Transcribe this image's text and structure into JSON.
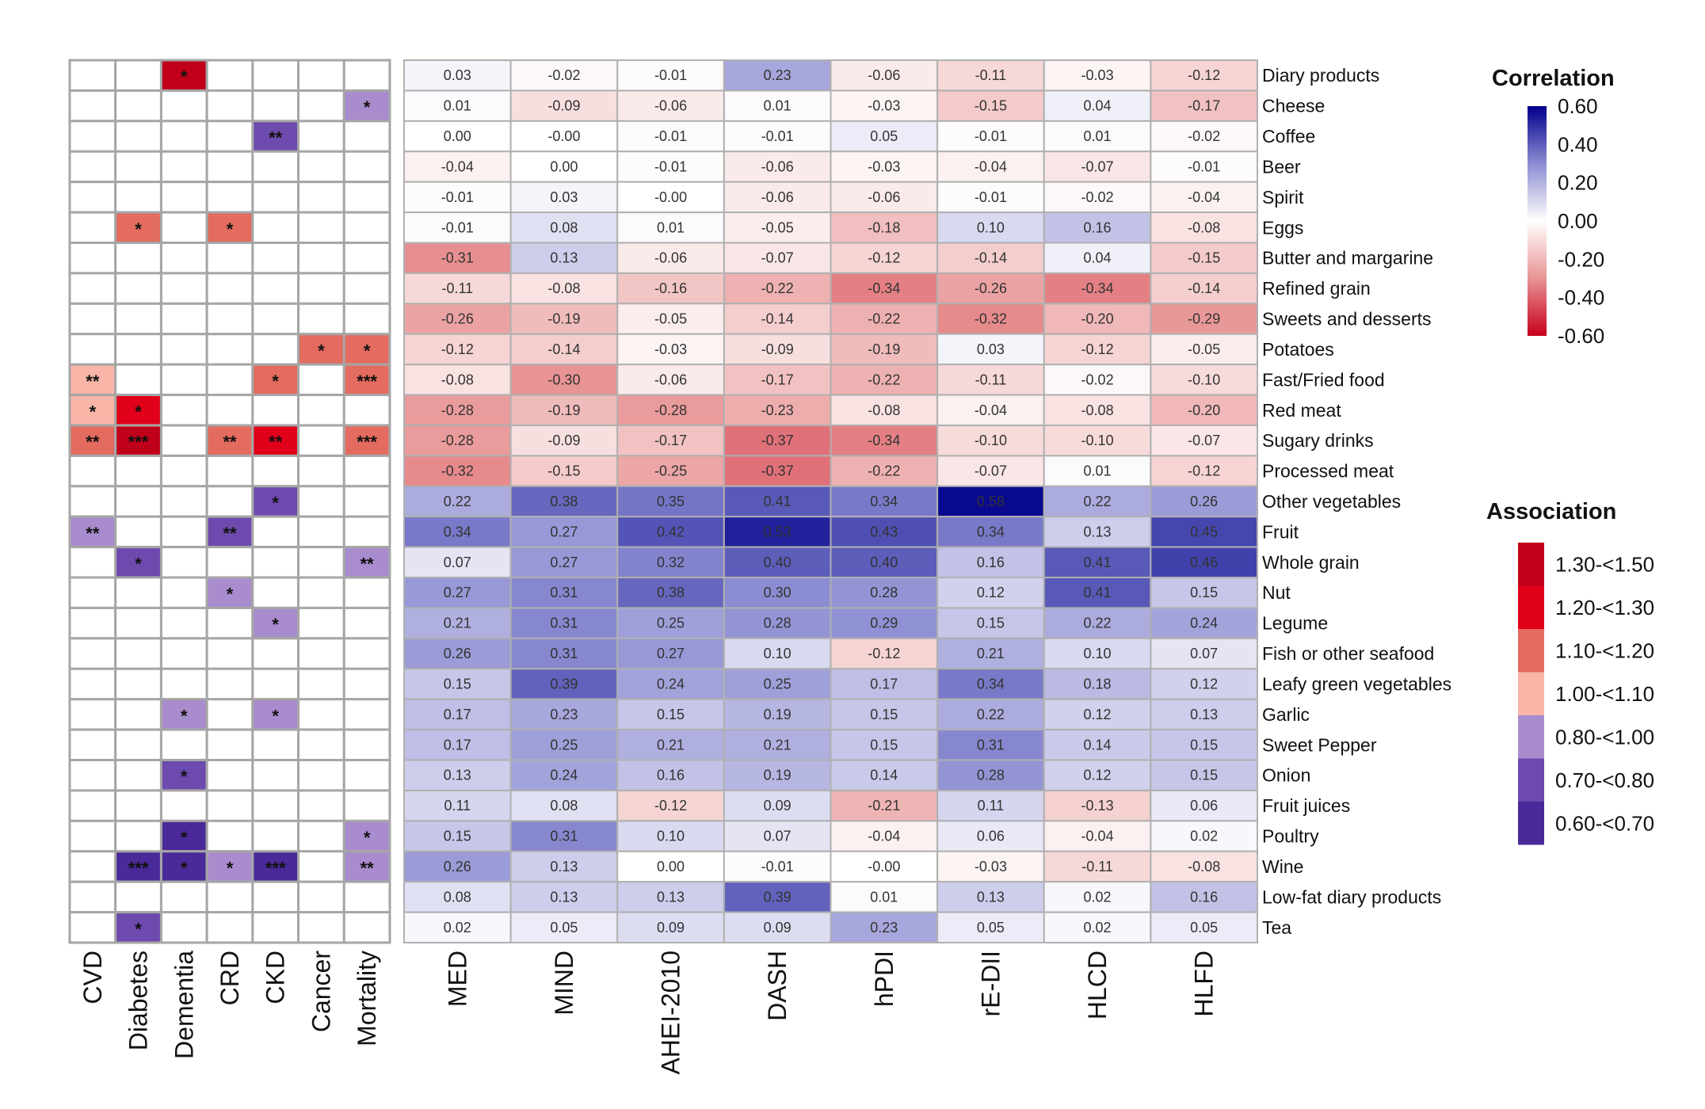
{
  "chart_data": {
    "type": "heatmap",
    "rows": [
      "Diary products",
      "Cheese",
      "Coffee",
      "Beer",
      "Spirit",
      "Eggs",
      "Butter and margarine",
      "Refined grain",
      "Sweets and desserts",
      "Potatoes",
      "Fast/Fried food",
      "Red meat",
      "Sugary drinks",
      "Processed meat",
      "Other vegetables",
      "Fruit",
      "Whole grain",
      "Nut",
      "Legume",
      "Fish or other seafood",
      "Leafy green vegetables",
      "Garlic",
      "Sweet Pepper",
      "Onion",
      "Fruit juices",
      "Poultry",
      "Wine",
      "Low-fat diary products",
      "Tea"
    ],
    "correlation": {
      "columns": [
        "MED",
        "MIND",
        "AHEI-2010",
        "DASH",
        "hPDI",
        "rE-DII",
        "HLCD",
        "HLFD"
      ],
      "values": [
        [
          "0.03",
          "-0.02",
          "-0.01",
          "0.23",
          "-0.06",
          "-0.11",
          "-0.03",
          "-0.12"
        ],
        [
          "0.01",
          "-0.09",
          "-0.06",
          "0.01",
          "-0.03",
          "-0.15",
          "0.04",
          "-0.17"
        ],
        [
          "0.00",
          "-0.00",
          "-0.01",
          "-0.01",
          "0.05",
          "-0.01",
          "0.01",
          "-0.02"
        ],
        [
          "-0.04",
          "0.00",
          "-0.01",
          "-0.06",
          "-0.03",
          "-0.04",
          "-0.07",
          "-0.01"
        ],
        [
          "-0.01",
          "0.03",
          "-0.00",
          "-0.06",
          "-0.06",
          "-0.01",
          "-0.02",
          "-0.04"
        ],
        [
          "-0.01",
          "0.08",
          "0.01",
          "-0.05",
          "-0.18",
          "0.10",
          "0.16",
          "-0.08"
        ],
        [
          "-0.31",
          "0.13",
          "-0.06",
          "-0.07",
          "-0.12",
          "-0.14",
          "0.04",
          "-0.15"
        ],
        [
          "-0.11",
          "-0.08",
          "-0.16",
          "-0.22",
          "-0.34",
          "-0.26",
          "-0.34",
          "-0.14"
        ],
        [
          "-0.26",
          "-0.19",
          "-0.05",
          "-0.14",
          "-0.22",
          "-0.32",
          "-0.20",
          "-0.29"
        ],
        [
          "-0.12",
          "-0.14",
          "-0.03",
          "-0.09",
          "-0.19",
          "0.03",
          "-0.12",
          "-0.05"
        ],
        [
          "-0.08",
          "-0.30",
          "-0.06",
          "-0.17",
          "-0.22",
          "-0.11",
          "-0.02",
          "-0.10"
        ],
        [
          "-0.28",
          "-0.19",
          "-0.28",
          "-0.23",
          "-0.08",
          "-0.04",
          "-0.08",
          "-0.20"
        ],
        [
          "-0.28",
          "-0.09",
          "-0.17",
          "-0.37",
          "-0.34",
          "-0.10",
          "-0.10",
          "-0.07"
        ],
        [
          "-0.32",
          "-0.15",
          "-0.25",
          "-0.37",
          "-0.22",
          "-0.07",
          "0.01",
          "-0.12"
        ],
        [
          "0.22",
          "0.38",
          "0.35",
          "0.41",
          "0.34",
          "0.58",
          "0.22",
          "0.26"
        ],
        [
          "0.34",
          "0.27",
          "0.42",
          "0.53",
          "0.43",
          "0.34",
          "0.13",
          "0.45"
        ],
        [
          "0.07",
          "0.27",
          "0.32",
          "0.40",
          "0.40",
          "0.16",
          "0.41",
          "0.46"
        ],
        [
          "0.27",
          "0.31",
          "0.38",
          "0.30",
          "0.28",
          "0.12",
          "0.41",
          "0.15"
        ],
        [
          "0.21",
          "0.31",
          "0.25",
          "0.28",
          "0.29",
          "0.15",
          "0.22",
          "0.24"
        ],
        [
          "0.26",
          "0.31",
          "0.27",
          "0.10",
          "-0.12",
          "0.21",
          "0.10",
          "0.07"
        ],
        [
          "0.15",
          "0.39",
          "0.24",
          "0.25",
          "0.17",
          "0.34",
          "0.18",
          "0.12"
        ],
        [
          "0.17",
          "0.23",
          "0.15",
          "0.19",
          "0.15",
          "0.22",
          "0.12",
          "0.13"
        ],
        [
          "0.17",
          "0.25",
          "0.21",
          "0.21",
          "0.15",
          "0.31",
          "0.14",
          "0.15"
        ],
        [
          "0.13",
          "0.24",
          "0.16",
          "0.19",
          "0.14",
          "0.28",
          "0.12",
          "0.15"
        ],
        [
          "0.11",
          "0.08",
          "-0.12",
          "0.09",
          "-0.21",
          "0.11",
          "-0.13",
          "0.06"
        ],
        [
          "0.15",
          "0.31",
          "0.10",
          "0.07",
          "-0.04",
          "0.06",
          "-0.04",
          "0.02"
        ],
        [
          "0.26",
          "0.13",
          "0.00",
          "-0.01",
          "-0.00",
          "-0.03",
          "-0.11",
          "-0.08"
        ],
        [
          "0.08",
          "0.13",
          "0.13",
          "0.39",
          "0.01",
          "0.13",
          "0.02",
          "0.16"
        ],
        [
          "0.02",
          "0.05",
          "0.09",
          "0.09",
          "0.23",
          "0.05",
          "0.02",
          "0.05"
        ]
      ],
      "legend_title": "Correlation",
      "legend_ticks": [
        "0.60",
        "0.40",
        "0.20",
        "0.00",
        "-0.20",
        "-0.40",
        "-0.60"
      ],
      "range": [
        -0.6,
        0.6
      ],
      "colors": {
        "low": "#c8001e",
        "mid_low": "#e89494",
        "zero": "#ffffff",
        "mid_high": "#8c8cd2",
        "high": "#00008b"
      }
    },
    "association": {
      "columns": [
        "CVD",
        "Diabetes",
        "Dementia",
        "CRD",
        "CKD",
        "Cancer",
        "Mortality"
      ],
      "legend_title": "Association",
      "categories": [
        "1.30-<1.50",
        "1.20-<1.30",
        "1.10-<1.20",
        "1.00-<1.10",
        "0.80-<1.00",
        "0.70-<0.80",
        "0.60-<0.70"
      ],
      "category_colors": [
        "#c0001a",
        "#e00019",
        "#e46b5f",
        "#f8b5a8",
        "#a98ccd",
        "#6d4aad",
        "#4a2999"
      ],
      "cells": [
        {
          "row": 0,
          "col": 2,
          "cat": 0,
          "sig": "*"
        },
        {
          "row": 1,
          "col": 6,
          "cat": 4,
          "sig": "*"
        },
        {
          "row": 2,
          "col": 4,
          "cat": 5,
          "sig": "**"
        },
        {
          "row": 5,
          "col": 1,
          "cat": 2,
          "sig": "*"
        },
        {
          "row": 5,
          "col": 3,
          "cat": 2,
          "sig": "*"
        },
        {
          "row": 9,
          "col": 5,
          "cat": 2,
          "sig": "*"
        },
        {
          "row": 9,
          "col": 6,
          "cat": 2,
          "sig": "*"
        },
        {
          "row": 10,
          "col": 0,
          "cat": 3,
          "sig": "**"
        },
        {
          "row": 10,
          "col": 4,
          "cat": 2,
          "sig": "*"
        },
        {
          "row": 10,
          "col": 6,
          "cat": 2,
          "sig": "***"
        },
        {
          "row": 11,
          "col": 0,
          "cat": 3,
          "sig": "*"
        },
        {
          "row": 11,
          "col": 1,
          "cat": 1,
          "sig": "*"
        },
        {
          "row": 12,
          "col": 0,
          "cat": 2,
          "sig": "**"
        },
        {
          "row": 12,
          "col": 1,
          "cat": 0,
          "sig": "***"
        },
        {
          "row": 12,
          "col": 3,
          "cat": 2,
          "sig": "**"
        },
        {
          "row": 12,
          "col": 4,
          "cat": 1,
          "sig": "**"
        },
        {
          "row": 12,
          "col": 6,
          "cat": 2,
          "sig": "***"
        },
        {
          "row": 14,
          "col": 4,
          "cat": 5,
          "sig": "*"
        },
        {
          "row": 15,
          "col": 0,
          "cat": 4,
          "sig": "**"
        },
        {
          "row": 15,
          "col": 3,
          "cat": 5,
          "sig": "**"
        },
        {
          "row": 16,
          "col": 1,
          "cat": 5,
          "sig": "*"
        },
        {
          "row": 16,
          "col": 6,
          "cat": 4,
          "sig": "**"
        },
        {
          "row": 17,
          "col": 3,
          "cat": 4,
          "sig": "*"
        },
        {
          "row": 18,
          "col": 4,
          "cat": 4,
          "sig": "*"
        },
        {
          "row": 21,
          "col": 2,
          "cat": 4,
          "sig": "*"
        },
        {
          "row": 21,
          "col": 4,
          "cat": 4,
          "sig": "*"
        },
        {
          "row": 23,
          "col": 2,
          "cat": 5,
          "sig": "*"
        },
        {
          "row": 25,
          "col": 2,
          "cat": 6,
          "sig": "*"
        },
        {
          "row": 25,
          "col": 6,
          "cat": 4,
          "sig": "*"
        },
        {
          "row": 26,
          "col": 1,
          "cat": 6,
          "sig": "***"
        },
        {
          "row": 26,
          "col": 2,
          "cat": 6,
          "sig": "*"
        },
        {
          "row": 26,
          "col": 3,
          "cat": 4,
          "sig": "*"
        },
        {
          "row": 26,
          "col": 4,
          "cat": 6,
          "sig": "***"
        },
        {
          "row": 26,
          "col": 6,
          "cat": 4,
          "sig": "**"
        },
        {
          "row": 28,
          "col": 1,
          "cat": 5,
          "sig": "*"
        }
      ]
    }
  }
}
